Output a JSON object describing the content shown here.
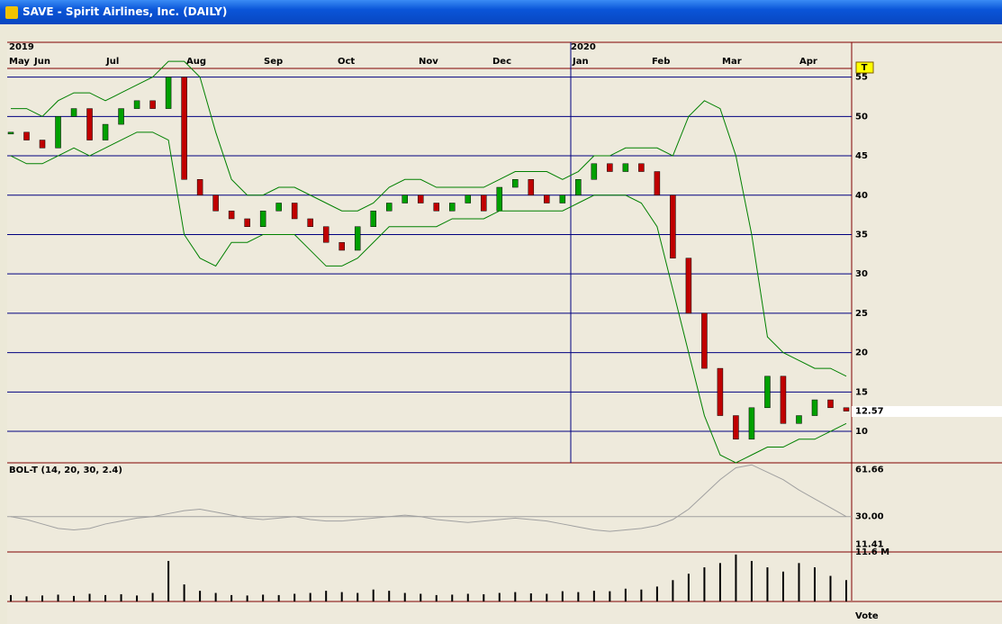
{
  "window": {
    "title": "SAVE - Spirit Airlines, Inc. (DAILY)"
  },
  "years": [
    "2019",
    "2020"
  ],
  "months": [
    "May",
    "Jun",
    "Jul",
    "Aug",
    "Sep",
    "Oct",
    "Nov",
    "Dec",
    "Jan",
    "Feb",
    "Mar",
    "Apr"
  ],
  "marker": "T",
  "footer": "Vote",
  "chart_data": [
    {
      "type": "candle",
      "ylim": [
        6,
        56.1
      ],
      "yticks": [
        10,
        15,
        20,
        25,
        30,
        35,
        40,
        45,
        50,
        55
      ],
      "grid": true,
      "series": [
        {
          "name": "SAVE",
          "color": "#000000",
          "values": [
            48,
            47,
            46,
            50,
            51,
            47,
            49,
            51,
            52,
            51,
            55,
            42,
            40,
            38,
            37,
            36,
            38,
            39,
            37,
            36,
            34,
            33,
            36,
            38,
            39,
            40,
            39,
            38,
            39,
            40,
            38,
            41,
            42,
            40,
            39,
            40,
            42,
            44,
            43,
            44,
            43,
            40,
            32,
            25,
            18,
            12,
            9,
            13,
            17,
            11,
            12,
            14,
            13,
            12.57
          ]
        },
        {
          "name": "Upper",
          "color": "#008000",
          "values": [
            51,
            51,
            50,
            52,
            53,
            53,
            52,
            53,
            54,
            55,
            57,
            57,
            55,
            48,
            42,
            40,
            40,
            41,
            41,
            40,
            39,
            38,
            38,
            39,
            41,
            42,
            42,
            41,
            41,
            41,
            41,
            42,
            43,
            43,
            43,
            42,
            43,
            45,
            45,
            46,
            46,
            46,
            45,
            50,
            52,
            51,
            45,
            35,
            22,
            20,
            19,
            18,
            18,
            17
          ]
        },
        {
          "name": "Lower",
          "color": "#008000",
          "values": [
            45,
            44,
            44,
            45,
            46,
            45,
            46,
            47,
            48,
            48,
            47,
            35,
            32,
            31,
            34,
            34,
            35,
            35,
            35,
            33,
            31,
            31,
            32,
            34,
            36,
            36,
            36,
            36,
            37,
            37,
            37,
            38,
            38,
            38,
            38,
            38,
            39,
            40,
            40,
            40,
            39,
            36,
            28,
            20,
            12,
            7,
            6,
            7,
            8,
            8,
            9,
            9,
            10,
            11
          ]
        }
      ]
    },
    {
      "type": "line",
      "title": "BOL-T (14, 20, 30, 2.4)",
      "ylim": [
        6.1,
        66.35
      ],
      "yticks": [
        61.66,
        {
          "value": 30,
          "label": "30.00"
        },
        11.41
      ],
      "color": "#a0a0a0",
      "values": [
        30,
        28,
        25,
        22,
        21,
        22,
        25,
        27,
        29,
        30,
        32,
        34,
        35,
        33,
        31,
        29,
        28,
        29,
        30,
        28,
        27,
        27,
        28,
        29,
        30,
        31,
        30,
        28,
        27,
        26,
        27,
        28,
        29,
        28,
        27,
        25,
        23,
        21,
        20,
        21,
        22,
        24,
        28,
        35,
        45,
        55,
        63,
        65,
        60,
        55,
        48,
        42,
        36,
        30
      ]
    },
    {
      "type": "bar",
      "ylim": [
        0,
        11.6
      ],
      "yticks": [
        {
          "value": 11.6,
          "label": "11.6 M"
        }
      ],
      "color": "#000000",
      "values": [
        1.5,
        1.2,
        1.4,
        1.6,
        1.3,
        1.8,
        1.5,
        1.7,
        1.4,
        2,
        9.5,
        4,
        2.5,
        2,
        1.5,
        1.4,
        1.6,
        1.5,
        1.8,
        2,
        2.5,
        2.2,
        2,
        2.8,
        2.5,
        2,
        1.8,
        1.5,
        1.6,
        1.8,
        1.7,
        2,
        2.2,
        1.9,
        1.8,
        2.4,
        2.2,
        2.5,
        2.4,
        3,
        2.8,
        3.5,
        5,
        6.5,
        8,
        9,
        11,
        9.5,
        8,
        7,
        9,
        8,
        6,
        5
      ]
    }
  ]
}
